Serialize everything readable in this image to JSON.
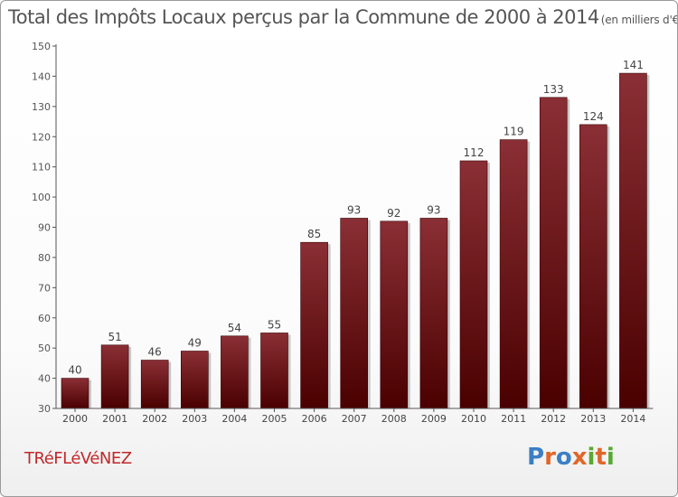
{
  "chart_data": {
    "type": "bar",
    "title": "Total des Impôts Locaux perçus par la Commune de 2000 à 2014",
    "unit": "(en milliers d'€)",
    "categories": [
      "2000",
      "2001",
      "2002",
      "2003",
      "2004",
      "2005",
      "2006",
      "2007",
      "2008",
      "2009",
      "2010",
      "2011",
      "2012",
      "2013",
      "2014"
    ],
    "values": [
      40,
      51,
      46,
      49,
      54,
      55,
      85,
      93,
      92,
      93,
      112,
      119,
      133,
      124,
      141
    ],
    "ylim": [
      30,
      150
    ],
    "yticks": [
      30,
      40,
      50,
      60,
      70,
      80,
      90,
      100,
      110,
      120,
      130,
      140,
      150
    ],
    "xlabel": "",
    "ylabel": "",
    "grid": false,
    "bar_color_top": "#8a2f35",
    "bar_color_bottom": "#4a0000",
    "bar_shadow": "#c9c9c9"
  },
  "footer": {
    "commune": "TRéFLéVéNEZ",
    "commune_color": "#c0292b",
    "brand_letters": [
      "P",
      "r",
      "o",
      "x",
      "i",
      "t",
      "i"
    ],
    "brand_colors": [
      "#3b7fc4",
      "#e0662a",
      "#3b7fc4",
      "#e0662a",
      "#5aa832",
      "#e0662a",
      "#5aa832"
    ]
  }
}
